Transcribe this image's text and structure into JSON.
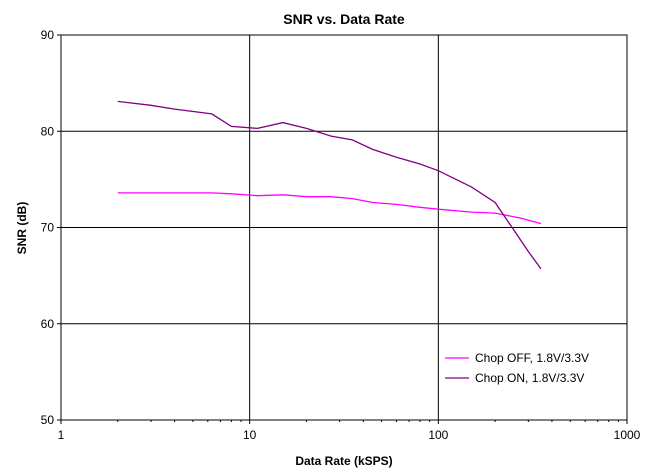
{
  "chart_data": {
    "type": "line",
    "title": "SNR vs. Data Rate",
    "xlabel": "Data Rate (kSPS)",
    "ylabel": "SNR (dB)",
    "x_scale": "log",
    "xlim": [
      1,
      1000
    ],
    "ylim": [
      50,
      90
    ],
    "x_ticks": [
      1,
      10,
      100,
      1000
    ],
    "x_tick_labels": [
      "1",
      "10",
      "100",
      "1000"
    ],
    "y_ticks": [
      50,
      60,
      70,
      80,
      90
    ],
    "y_tick_labels": [
      "50",
      "60",
      "70",
      "80",
      "90"
    ],
    "grid": true,
    "legend_position": "bottom-right",
    "series": [
      {
        "name": "Chop OFF, 1.8V/3.3V",
        "color": "#ff00ff",
        "x": [
          2,
          3,
          4,
          6.3,
          8,
          11,
          15,
          20,
          27,
          35,
          45,
          60,
          80,
          100,
          150,
          200,
          270,
          350
        ],
        "y": [
          73.6,
          73.6,
          73.6,
          73.6,
          73.5,
          73.3,
          73.4,
          73.2,
          73.2,
          73.0,
          72.6,
          72.4,
          72.1,
          71.9,
          71.6,
          71.5,
          71.0,
          70.4
        ]
      },
      {
        "name": "Chop ON, 1.8V/3.3V",
        "color": "#800080",
        "x": [
          2,
          3,
          4,
          6.3,
          8,
          11,
          15,
          20,
          27,
          35,
          45,
          60,
          80,
          100,
          150,
          200,
          250,
          300,
          350
        ],
        "y": [
          83.1,
          82.7,
          82.3,
          81.8,
          80.5,
          80.3,
          80.9,
          80.3,
          79.5,
          79.1,
          78.1,
          77.3,
          76.6,
          75.9,
          74.2,
          72.6,
          69.8,
          67.5,
          65.7
        ]
      }
    ]
  }
}
